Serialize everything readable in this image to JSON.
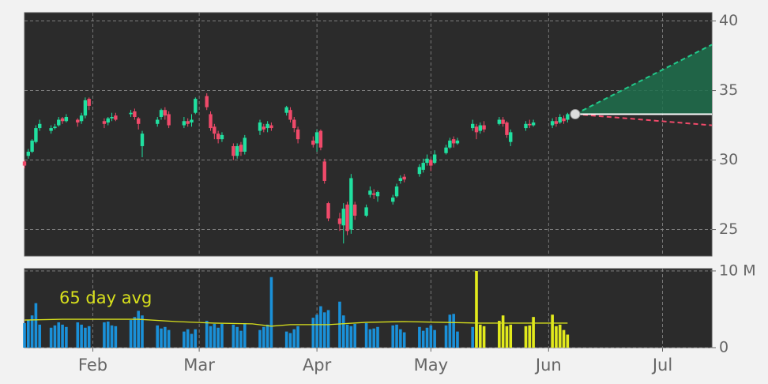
{
  "chart_data": {
    "type": "candlestick",
    "xlim": [
      0,
      181
    ],
    "xticks": [
      {
        "value": 18,
        "label": "Feb"
      },
      {
        "value": 46,
        "label": "Mar"
      },
      {
        "value": 77,
        "label": "Apr"
      },
      {
        "value": 107,
        "label": "May"
      },
      {
        "value": 138,
        "label": "Jun"
      },
      {
        "value": 168,
        "label": "Jul"
      }
    ],
    "ylim": [
      23.1,
      40.6
    ],
    "yticks": [
      25,
      30,
      35,
      40
    ],
    "grid": true,
    "up_color": "#20e0a0",
    "down_color": "#f04a6a",
    "x": [
      0,
      1,
      2,
      3,
      4,
      7,
      8,
      9,
      10,
      11,
      14,
      15,
      16,
      17,
      21,
      22,
      23,
      24,
      28,
      29,
      30,
      31,
      35,
      36,
      37,
      38,
      42,
      43,
      44,
      45,
      48,
      49,
      50,
      51,
      52,
      55,
      56,
      57,
      58,
      62,
      63,
      64,
      65,
      69,
      70,
      71,
      72,
      76,
      77,
      78,
      79,
      80,
      83,
      84,
      85,
      86,
      87,
      90,
      91,
      92,
      93,
      97,
      98,
      99,
      100,
      104,
      105,
      106,
      107,
      108,
      111,
      112,
      113,
      114,
      118,
      119,
      120,
      121,
      125,
      126,
      127,
      128,
      132,
      133,
      134,
      139,
      140,
      141,
      142,
      143
    ],
    "open": [
      29.9,
      30.3,
      30.6,
      31.3,
      32.3,
      32.1,
      32.3,
      32.5,
      33.0,
      32.8,
      32.9,
      32.8,
      33.2,
      34.4,
      32.8,
      32.7,
      33.0,
      33.2,
      33.3,
      33.5,
      33.0,
      31.0,
      32.6,
      33.1,
      33.6,
      33.3,
      32.5,
      32.8,
      32.7,
      33.4,
      34.6,
      33.3,
      32.4,
      31.9,
      31.5,
      31.0,
      30.3,
      31.1,
      30.6,
      32.1,
      32.4,
      32.3,
      32.5,
      33.4,
      33.6,
      32.9,
      32.2,
      31.4,
      31.2,
      32.1,
      29.9,
      26.9,
      25.8,
      25.3,
      26.8,
      25.0,
      26.8,
      26.0,
      27.5,
      27.6,
      27.4,
      27.0,
      27.4,
      28.5,
      28.8,
      29.0,
      29.3,
      29.8,
      30.0,
      29.8,
      30.5,
      30.9,
      31.5,
      31.2,
      32.3,
      32.4,
      32.1,
      32.5,
      32.6,
      32.9,
      32.7,
      31.3,
      32.3,
      32.6,
      32.5,
      32.5,
      32.8,
      32.7,
      33.0,
      32.9
    ],
    "high": [
      30.0,
      30.8,
      31.5,
      32.5,
      32.9,
      32.5,
      32.6,
      33.1,
      33.1,
      33.3,
      33.0,
      33.4,
      34.5,
      34.5,
      33.0,
      33.1,
      33.4,
      33.4,
      33.6,
      33.7,
      33.1,
      32.1,
      33.1,
      33.7,
      33.8,
      33.5,
      33.1,
      33.0,
      33.3,
      34.5,
      34.8,
      33.5,
      32.6,
      32.1,
      32.0,
      31.2,
      31.2,
      31.3,
      31.8,
      32.9,
      32.6,
      32.8,
      32.7,
      33.9,
      33.8,
      33.1,
      32.4,
      31.7,
      32.2,
      32.2,
      30.1,
      27.0,
      26.2,
      26.9,
      27.0,
      29.0,
      27.0,
      26.8,
      28.1,
      27.9,
      27.8,
      27.5,
      28.3,
      28.9,
      29.0,
      29.7,
      30.1,
      30.4,
      30.1,
      30.7,
      31.1,
      31.6,
      31.7,
      31.6,
      32.9,
      32.6,
      32.7,
      32.8,
      33.1,
      33.1,
      32.8,
      32.2,
      32.8,
      32.9,
      32.9,
      33.0,
      33.1,
      33.3,
      33.2,
      33.4
    ],
    "low": [
      29.4,
      30.1,
      30.5,
      31.2,
      32.1,
      31.9,
      32.2,
      32.4,
      32.6,
      32.7,
      32.4,
      32.6,
      33.0,
      33.6,
      32.3,
      32.5,
      32.8,
      32.8,
      33.1,
      32.9,
      32.2,
      30.2,
      32.4,
      32.9,
      32.9,
      32.3,
      32.3,
      32.4,
      32.4,
      33.3,
      33.6,
      32.1,
      31.5,
      31.2,
      31.3,
      30.0,
      30.1,
      30.3,
      30.4,
      31.8,
      32.0,
      32.0,
      32.1,
      33.2,
      32.7,
      32.0,
      31.2,
      30.9,
      30.6,
      30.7,
      28.3,
      25.6,
      24.9,
      24.0,
      24.6,
      24.7,
      25.7,
      25.9,
      27.3,
      27.2,
      27.0,
      26.8,
      27.3,
      28.3,
      28.4,
      28.8,
      29.1,
      29.6,
      29.2,
      29.7,
      30.4,
      30.8,
      30.9,
      31.1,
      32.1,
      31.5,
      31.9,
      32.0,
      32.5,
      32.4,
      31.6,
      31.0,
      32.1,
      32.3,
      32.4,
      32.3,
      32.4,
      32.6,
      32.6,
      32.7
    ],
    "close": [
      29.6,
      30.6,
      31.4,
      32.3,
      32.6,
      32.3,
      32.4,
      32.9,
      32.8,
      33.1,
      32.7,
      33.2,
      34.3,
      33.9,
      32.6,
      33.0,
      33.1,
      32.9,
      33.4,
      33.1,
      32.6,
      31.9,
      32.9,
      33.6,
      33.2,
      32.5,
      32.8,
      32.6,
      32.9,
      34.4,
      33.8,
      32.3,
      31.9,
      31.5,
      31.8,
      30.3,
      31.0,
      30.6,
      31.6,
      32.7,
      32.2,
      32.6,
      32.3,
      33.8,
      32.9,
      32.3,
      31.5,
      31.1,
      32.0,
      30.9,
      28.5,
      25.8,
      25.4,
      26.5,
      24.9,
      28.7,
      26.0,
      26.6,
      27.8,
      27.5,
      27.7,
      27.3,
      28.1,
      28.7,
      28.6,
      29.5,
      29.8,
      30.1,
      29.6,
      30.4,
      30.9,
      31.4,
      31.2,
      31.4,
      32.6,
      32.0,
      32.5,
      32.2,
      32.9,
      32.6,
      31.8,
      32.0,
      32.6,
      32.5,
      32.7,
      32.8,
      32.6,
      33.1,
      32.8,
      33.3
    ],
    "forecast": {
      "x": [
        145,
        181
      ],
      "upper": [
        33.3,
        38.3
      ],
      "lower": [
        33.3,
        32.5
      ],
      "last": [
        33.3,
        33.3
      ],
      "upper_color": "#22c98a",
      "lower_color": "#f04a6a",
      "last_color": "#ffffff",
      "fill": "#1f6e4c"
    },
    "volume_panel": {
      "ylim": [
        0,
        10300000
      ],
      "yticks": [
        0,
        {
          "value": 10000000,
          "label": "10 M"
        }
      ],
      "volume": {
        "color": "#1a90d8",
        "x": [
          0,
          1,
          2,
          3,
          4,
          7,
          8,
          9,
          10,
          11,
          14,
          15,
          16,
          17,
          21,
          22,
          23,
          24,
          28,
          29,
          30,
          31,
          35,
          36,
          37,
          38,
          42,
          43,
          44,
          45,
          48,
          49,
          50,
          51,
          52,
          55,
          56,
          57,
          58,
          62,
          63,
          64,
          65,
          69,
          70,
          71,
          72,
          76,
          77,
          78,
          79,
          80,
          83,
          84,
          85,
          86,
          87,
          90,
          91,
          92,
          93,
          97,
          98,
          99,
          100,
          104,
          105,
          106,
          107,
          108,
          111,
          112,
          113,
          114,
          118
        ],
        "values": [
          3200000,
          3600000,
          4200000,
          5800000,
          3000000,
          2600000,
          2900000,
          3300000,
          3000000,
          2700000,
          3300000,
          3000000,
          2600000,
          2800000,
          3300000,
          3400000,
          2900000,
          2800000,
          3600000,
          4000000,
          4800000,
          4200000,
          2900000,
          2500000,
          2700000,
          2300000,
          2100000,
          2400000,
          1800000,
          2400000,
          3500000,
          2800000,
          3100000,
          2600000,
          3100000,
          3000000,
          2700000,
          2200000,
          3200000,
          2300000,
          2700000,
          3000000,
          9200000,
          2100000,
          1900000,
          2400000,
          2800000,
          3900000,
          4300000,
          5400000,
          4600000,
          4900000,
          6000000,
          4200000,
          3000000,
          2800000,
          3100000,
          3200000,
          2400000,
          2500000,
          2700000,
          2900000,
          3000000,
          2400000,
          2000000,
          2700000,
          2200000,
          2600000,
          2900000,
          2300000,
          2900000,
          4300000,
          4400000,
          2100000,
          2700000
        ]
      },
      "recent_volume": {
        "color": "#e2ea1c",
        "x": [
          119,
          120,
          121,
          125,
          126,
          127,
          128,
          132,
          133,
          134,
          139,
          140,
          141,
          142,
          143
        ],
        "values": [
          10000000,
          3000000,
          2800000,
          3500000,
          4200000,
          2800000,
          3000000,
          2800000,
          2900000,
          4000000,
          4300000,
          2800000,
          3000000,
          2300000,
          1700000
        ]
      },
      "avg": {
        "name": "65 day avg",
        "color": "#d8e01c",
        "x": [
          0,
          10,
          20,
          30,
          40,
          50,
          60,
          65,
          70,
          80,
          90,
          100,
          110,
          120,
          130,
          143
        ],
        "values": [
          3600000,
          3700000,
          3700000,
          3700000,
          3400000,
          3200000,
          3100000,
          2800000,
          3000000,
          3000000,
          3300000,
          3400000,
          3300000,
          3200000,
          3200000,
          3200000
        ]
      }
    }
  }
}
